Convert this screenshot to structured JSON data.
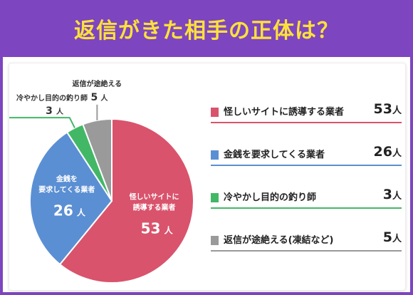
{
  "header": {
    "title": "返信がきた相手の正体は？"
  },
  "colors": {
    "header_bg": "#7d45bf",
    "title_text": "#fde13a"
  },
  "chart_data": {
    "type": "pie",
    "title": "返信がきた相手の正体は？",
    "unit": "人",
    "slices": [
      {
        "legend": "怪しいサイトに誘導する業者",
        "label_lines": [
          "怪しいサイトに",
          "誘導する業者"
        ],
        "value": 53,
        "color": "#d9536c"
      },
      {
        "legend": "金銭を要求してくる業者",
        "label_lines": [
          "金銭を",
          "要求してくる業者"
        ],
        "value": 26,
        "color": "#5b8fd3"
      },
      {
        "legend": "冷やかし目的の釣り師",
        "label_lines": [
          "冷やかし目的の釣り師"
        ],
        "value": 3,
        "color": "#42b866"
      },
      {
        "legend": "返信が途絶える(凍結など)",
        "label_lines": [
          "返信が途絶える"
        ],
        "value": 5,
        "color": "#9a9a9a"
      }
    ]
  }
}
